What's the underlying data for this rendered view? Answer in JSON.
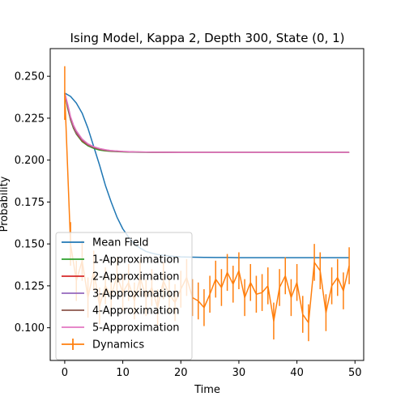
{
  "chart_data": {
    "type": "line",
    "title": "Ising Model, Kappa 2, Depth 300, State (0, 1)",
    "xlabel": "Time",
    "ylabel": "Probability",
    "xlim": [
      -2.5,
      51.5
    ],
    "ylim": [
      0.0805,
      0.2665
    ],
    "xticks": [
      0,
      10,
      20,
      30,
      40,
      50
    ],
    "yticks": [
      0.1,
      0.125,
      0.15,
      0.175,
      0.2,
      0.225,
      0.25
    ],
    "ytick_labels": [
      "0.100",
      "0.125",
      "0.150",
      "0.175",
      "0.200",
      "0.225",
      "0.250"
    ],
    "grid": false,
    "legend_position": "lower-left",
    "series": [
      {
        "name": "Mean Field",
        "color": "#1f77b4",
        "x": [
          0,
          1,
          2,
          3,
          4,
          5,
          6,
          7,
          8,
          9,
          10,
          11,
          12,
          13,
          14,
          15,
          16,
          17,
          18,
          19,
          20,
          22,
          24,
          26,
          28,
          30,
          35,
          40,
          45,
          49
        ],
        "y": [
          0.24,
          0.238,
          0.234,
          0.228,
          0.219,
          0.208,
          0.197,
          0.185,
          0.175,
          0.166,
          0.159,
          0.154,
          0.15,
          0.1475,
          0.1455,
          0.1445,
          0.1437,
          0.1432,
          0.1428,
          0.1425,
          0.1423,
          0.1421,
          0.142,
          0.1419,
          0.1419,
          0.1418,
          0.1418,
          0.1418,
          0.1418,
          0.1418
        ]
      },
      {
        "name": "1-Approximation",
        "color": "#2ca02c",
        "x": [
          0,
          0.5,
          1,
          1.5,
          2,
          3,
          4,
          5,
          6,
          7,
          8,
          10,
          12,
          15,
          20,
          30,
          40,
          49
        ],
        "y": [
          0.24,
          0.231,
          0.224,
          0.219,
          0.2155,
          0.211,
          0.2085,
          0.207,
          0.206,
          0.2055,
          0.2052,
          0.2049,
          0.2047,
          0.2046,
          0.2046,
          0.2046,
          0.2046,
          0.2046
        ]
      },
      {
        "name": "2-Approximation",
        "color": "#d62728",
        "x": [
          0,
          0.5,
          1,
          1.5,
          2,
          3,
          4,
          5,
          6,
          7,
          8,
          10,
          12,
          15,
          20,
          30,
          40,
          49
        ],
        "y": [
          0.24,
          0.232,
          0.2245,
          0.2195,
          0.216,
          0.2115,
          0.209,
          0.2075,
          0.2065,
          0.2058,
          0.2054,
          0.205,
          0.2048,
          0.2047,
          0.2046,
          0.2046,
          0.2046,
          0.2046
        ]
      },
      {
        "name": "3-Approximation",
        "color": "#9467bd",
        "x": [
          0,
          0.5,
          1,
          1.5,
          2,
          3,
          4,
          5,
          6,
          7,
          8,
          10,
          12,
          15,
          20,
          30,
          40,
          49
        ],
        "y": [
          0.24,
          0.2325,
          0.225,
          0.22,
          0.2165,
          0.212,
          0.2093,
          0.2077,
          0.2067,
          0.206,
          0.2055,
          0.2051,
          0.2048,
          0.2047,
          0.2046,
          0.2046,
          0.2046,
          0.2046
        ]
      },
      {
        "name": "4-Approximation",
        "color": "#8c564b",
        "x": [
          0,
          0.5,
          1,
          1.5,
          2,
          3,
          4,
          5,
          6,
          7,
          8,
          10,
          12,
          15,
          20,
          30,
          40,
          49
        ],
        "y": [
          0.24,
          0.233,
          0.2255,
          0.2205,
          0.217,
          0.2123,
          0.2095,
          0.2079,
          0.2068,
          0.2061,
          0.2056,
          0.2051,
          0.2049,
          0.2047,
          0.2046,
          0.2046,
          0.2046,
          0.2046
        ]
      },
      {
        "name": "5-Approximation",
        "color": "#e377c2",
        "x": [
          0,
          0.5,
          1,
          1.5,
          2,
          3,
          4,
          5,
          6,
          7,
          8,
          10,
          12,
          15,
          20,
          30,
          40,
          49
        ],
        "y": [
          0.24,
          0.2335,
          0.226,
          0.221,
          0.2175,
          0.2126,
          0.2097,
          0.208,
          0.2069,
          0.2062,
          0.2057,
          0.2052,
          0.2049,
          0.2047,
          0.2046,
          0.2046,
          0.2046,
          0.2046
        ]
      },
      {
        "name": "Dynamics",
        "color": "#ff7f0e",
        "errorbars": true,
        "x": [
          0,
          1,
          2,
          3,
          4,
          5,
          6,
          7,
          8,
          9,
          10,
          11,
          12,
          13,
          14,
          15,
          16,
          17,
          18,
          19,
          20,
          21,
          22,
          23,
          24,
          25,
          26,
          27,
          28,
          29,
          30,
          31,
          32,
          33,
          34,
          35,
          36,
          37,
          38,
          39,
          40,
          41,
          42,
          43,
          44,
          45,
          46,
          47,
          48,
          49
        ],
        "y": [
          0.24,
          0.15,
          0.128,
          0.14,
          0.118,
          0.134,
          0.113,
          0.125,
          0.119,
          0.131,
          0.121,
          0.127,
          0.116,
          0.13,
          0.118,
          0.124,
          0.112,
          0.128,
          0.12,
          0.115,
          0.123,
          0.13,
          0.118,
          0.116,
          0.112,
          0.12,
          0.129,
          0.124,
          0.133,
          0.126,
          0.134,
          0.118,
          0.127,
          0.12,
          0.121,
          0.125,
          0.104,
          0.124,
          0.131,
          0.118,
          0.127,
          0.108,
          0.103,
          0.139,
          0.134,
          0.109,
          0.125,
          0.13,
          0.122,
          0.137
        ],
        "err": [
          0.016,
          0.013,
          0.012,
          0.012,
          0.012,
          0.012,
          0.011,
          0.011,
          0.011,
          0.011,
          0.011,
          0.011,
          0.011,
          0.011,
          0.011,
          0.011,
          0.011,
          0.011,
          0.011,
          0.011,
          0.011,
          0.011,
          0.011,
          0.011,
          0.011,
          0.011,
          0.011,
          0.011,
          0.011,
          0.011,
          0.011,
          0.011,
          0.011,
          0.011,
          0.011,
          0.011,
          0.011,
          0.011,
          0.011,
          0.011,
          0.011,
          0.011,
          0.011,
          0.011,
          0.011,
          0.011,
          0.011,
          0.011,
          0.011,
          0.011
        ]
      }
    ]
  }
}
